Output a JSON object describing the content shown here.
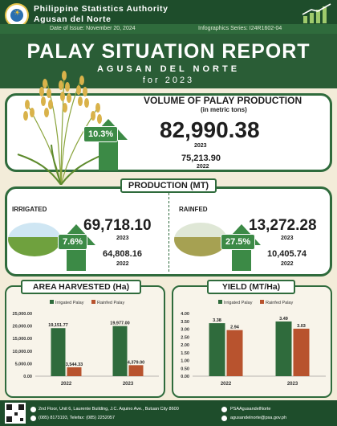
{
  "header": {
    "agency": "Philippine Statistics Authority",
    "office": "Agusan del Norte",
    "issue_date": "Date of Issue: November 20, 2024",
    "series": "Infographics Series: I24R1602-04"
  },
  "hero": {
    "title": "PALAY SITUATION REPORT",
    "province": "AGUSAN DEL NORTE",
    "period": "for 2023"
  },
  "volume": {
    "title": "VOLUME OF PALAY PRODUCTION",
    "unit": "(in metric tons)",
    "change": "10.3%",
    "current_value": "82,990.38",
    "current_year": "2023",
    "previous_value": "75,213.90",
    "previous_year": "2022"
  },
  "production": {
    "label": "PRODUCTION (MT)",
    "irrigated": {
      "label": "IRRIGATED",
      "change": "7.6%",
      "current_value": "69,718.10",
      "current_year": "2023",
      "previous_value": "64,808.16",
      "previous_year": "2022"
    },
    "rainfed": {
      "label": "RAINFED",
      "change": "27.5%",
      "current_value": "13,272.28",
      "current_year": "2023",
      "previous_value": "10,405.74",
      "previous_year": "2022"
    }
  },
  "chart_data": [
    {
      "type": "bar",
      "title": "AREA HARVESTED (Ha)",
      "categories": [
        "2022",
        "2023"
      ],
      "series": [
        {
          "name": "Irrigated Palay",
          "values": [
            19151.77,
            19977.0
          ],
          "labels": [
            "19,151.77",
            "19,977.00"
          ]
        },
        {
          "name": "Rainfed Palay",
          "values": [
            3544.33,
            4379.0
          ],
          "labels": [
            "3,544.33",
            "4,379.00"
          ]
        }
      ],
      "ylim": [
        0,
        25000
      ],
      "yticks": [
        "0.00",
        "5,000.00",
        "10,000.00",
        "15,000.00",
        "20,000.00",
        "25,000.00"
      ],
      "legend": "top",
      "grid": false
    },
    {
      "type": "bar",
      "title": "YIELD (MT/Ha)",
      "categories": [
        "2022",
        "2023"
      ],
      "series": [
        {
          "name": "Irrigated Palay",
          "values": [
            3.38,
            3.49
          ],
          "labels": [
            "3.38",
            "3.49"
          ]
        },
        {
          "name": "Rainfed Palay",
          "values": [
            2.94,
            3.03
          ],
          "labels": [
            "2.94",
            "3.03"
          ]
        }
      ],
      "ylim": [
        0,
        4
      ],
      "yticks": [
        "0.00",
        "0.50",
        "1.00",
        "1.50",
        "2.00",
        "2.50",
        "3.00",
        "3.50",
        "4.00"
      ],
      "legend": "top",
      "grid": false
    }
  ],
  "colors": {
    "dark_green": "#1e4d2b",
    "accent_green": "#3c8a46",
    "irrigated_bar": "#2f6b3c",
    "rainfed_bar": "#b8532e",
    "background": "#f3ecd9"
  },
  "footer": {
    "address": "2nd Floor, Unit 6, Laurente Building, J.C. Aquino Ave., Butuan City 8600",
    "phone": "(085) 8173193, Telefax: (085) 2252057",
    "facebook": "PSAAgusandelNorte",
    "email": "agusandelnorte@psa.gov.ph"
  }
}
